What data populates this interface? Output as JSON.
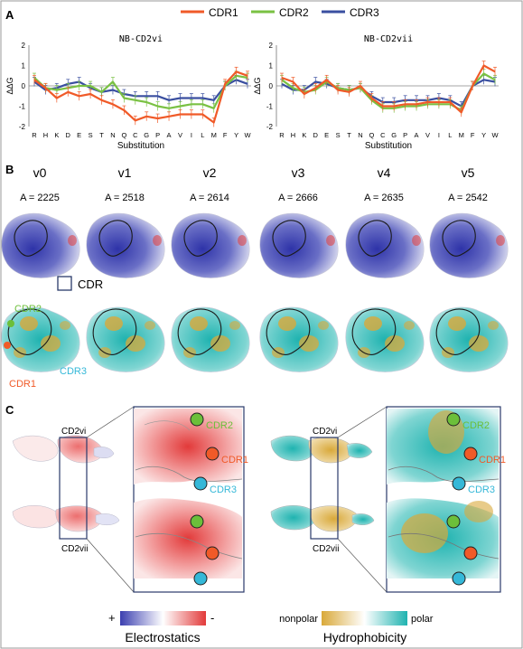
{
  "panels": {
    "A": "A",
    "B": "B",
    "C": "C"
  },
  "legend": {
    "cdr1": "CDR1",
    "cdr2": "CDR2",
    "cdr3": "CDR3"
  },
  "colors": {
    "cdr1": "#f05a28",
    "cdr2": "#7ac143",
    "cdr3": "#3a4fa0",
    "electro_pos": "#3b3fb0",
    "electro_neg": "#e23a3a",
    "hydro_nonpolar": "#d9a93a",
    "hydro_polar": "#1fb3b0",
    "cdr3_label": "#35b8d8",
    "cdr2_label": "#6cbf3a",
    "cdr1_label": "#f05a28"
  },
  "chart_data": [
    {
      "type": "line",
      "title": "NB-CD2vi",
      "xlabel": "Substitution",
      "ylabel": "ΔΔG",
      "ylim": [
        -2,
        2
      ],
      "yticks": [
        2,
        1,
        0,
        -1,
        -2
      ],
      "categories": [
        "R",
        "H",
        "K",
        "D",
        "E",
        "S",
        "T",
        "N",
        "Q",
        "C",
        "G",
        "P",
        "A",
        "V",
        "I",
        "L",
        "M",
        "F",
        "Y",
        "W"
      ],
      "series": [
        {
          "name": "CDR1",
          "values": [
            0.3,
            -0.1,
            -0.6,
            -0.3,
            -0.5,
            -0.4,
            -0.7,
            -0.9,
            -1.2,
            -1.7,
            -1.5,
            -1.6,
            -1.5,
            -1.4,
            -1.4,
            -1.4,
            -1.8,
            0.1,
            0.7,
            0.5
          ]
        },
        {
          "name": "CDR2",
          "values": [
            0.4,
            -0.1,
            -0.2,
            -0.1,
            0.0,
            0.0,
            -0.3,
            0.2,
            -0.6,
            -0.7,
            -0.8,
            -1.0,
            -1.1,
            -1.0,
            -0.9,
            -0.9,
            -1.1,
            0.0,
            0.5,
            0.4
          ]
        },
        {
          "name": "CDR3",
          "values": [
            0.2,
            -0.2,
            -0.1,
            0.1,
            0.2,
            -0.1,
            -0.3,
            -0.2,
            -0.4,
            -0.5,
            -0.5,
            -0.5,
            -0.7,
            -0.6,
            -0.6,
            -0.6,
            -0.7,
            0.0,
            0.3,
            0.1
          ]
        }
      ]
    },
    {
      "type": "line",
      "title": "NB-CD2vii",
      "xlabel": "Substitution",
      "ylabel": "ΔΔG",
      "ylim": [
        -2,
        2
      ],
      "yticks": [
        2,
        1,
        0,
        -1,
        -2
      ],
      "categories": [
        "R",
        "H",
        "K",
        "D",
        "E",
        "S",
        "T",
        "N",
        "Q",
        "C",
        "G",
        "P",
        "A",
        "V",
        "I",
        "L",
        "M",
        "F",
        "Y",
        "W"
      ],
      "series": [
        {
          "name": "CDR1",
          "values": [
            0.4,
            0.2,
            -0.4,
            -0.1,
            0.3,
            -0.2,
            -0.3,
            0.0,
            -0.6,
            -1.0,
            -1.0,
            -0.9,
            -0.9,
            -0.8,
            -0.8,
            -0.8,
            -1.3,
            0.0,
            1.0,
            0.7
          ]
        },
        {
          "name": "CDR2",
          "values": [
            0.3,
            -0.1,
            -0.3,
            -0.2,
            0.2,
            -0.1,
            -0.2,
            -0.1,
            -0.7,
            -1.1,
            -1.1,
            -1.0,
            -1.0,
            -0.9,
            -0.9,
            -0.9,
            -1.2,
            0.0,
            0.6,
            0.3
          ]
        },
        {
          "name": "CDR3",
          "values": [
            0.1,
            -0.2,
            -0.2,
            0.2,
            0.1,
            -0.1,
            -0.2,
            -0.1,
            -0.5,
            -0.8,
            -0.8,
            -0.7,
            -0.7,
            -0.7,
            -0.6,
            -0.7,
            -1.0,
            0.0,
            0.3,
            0.2
          ]
        }
      ]
    }
  ],
  "variants": [
    {
      "name": "v0",
      "area": "A = 2225"
    },
    {
      "name": "v1",
      "area": "A = 2518"
    },
    {
      "name": "v2",
      "area": "A = 2614"
    },
    {
      "name": "v3",
      "area": "A = 2666"
    },
    {
      "name": "v4",
      "area": "A = 2635"
    },
    {
      "name": "v5",
      "area": "A = 2542"
    }
  ],
  "panelB": {
    "cdr_box_label": "CDR",
    "cdr2": "CDR2",
    "cdr1": "CDR1",
    "cdr3": "CDR3"
  },
  "panelC": {
    "cd2vi": "CD2vi",
    "cd2vii": "CD2vii",
    "cdr2": "CDR2",
    "cdr1": "CDR1",
    "cdr3": "CDR3",
    "cdr2_h": "CDR2",
    "cdr1_h": "CDR1",
    "cdr3_h": "CDR3"
  },
  "scale": {
    "electro_plus": "+",
    "electro_minus": "-",
    "electro_title": "Electrostatics",
    "hydro_left": "nonpolar",
    "hydro_right": "polar",
    "hydro_title": "Hydrophobicity"
  }
}
